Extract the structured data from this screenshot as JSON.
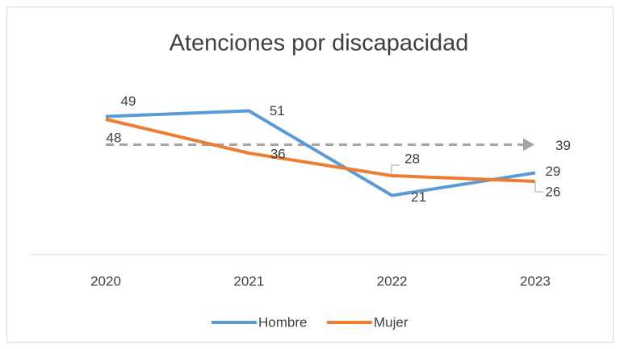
{
  "chart_data": {
    "type": "line",
    "title": "Atenciones por discapacidad",
    "categories": [
      "2020",
      "2021",
      "2022",
      "2023"
    ],
    "series": [
      {
        "name": "Hombre",
        "color": "#5b9bd5",
        "values": [
          49,
          51,
          21,
          29
        ]
      },
      {
        "name": "Mujer",
        "color": "#ed7d31",
        "values": [
          48,
          36,
          28,
          26
        ]
      }
    ],
    "reference_line": 39,
    "reference_color": "#a5a5a5",
    "ylim": [
      0,
      60
    ],
    "legend": "bottom"
  }
}
